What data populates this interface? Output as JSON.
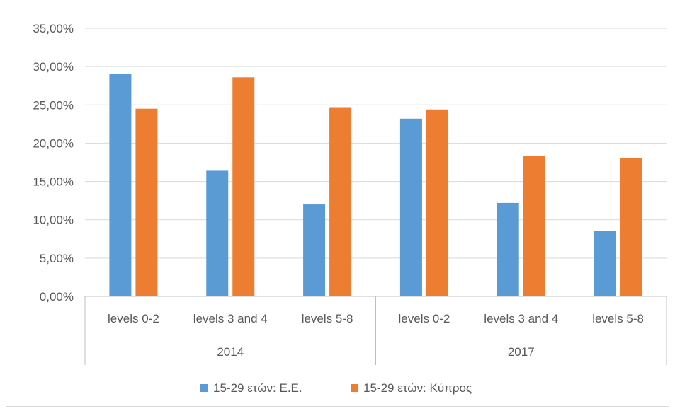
{
  "chart_data": {
    "type": "bar",
    "groups": [
      {
        "label": "2014",
        "categories": [
          "levels 0-2",
          "levels 3 and 4",
          "levels 5-8"
        ]
      },
      {
        "label": "2017",
        "categories": [
          "levels 0-2",
          "levels 3 and 4",
          "levels 5-8"
        ]
      }
    ],
    "series": [
      {
        "name": "15-29 ετών: Ε.Ε.",
        "color": "#5b9bd5",
        "values": [
          29.0,
          16.4,
          12.0,
          23.2,
          12.2,
          8.5
        ]
      },
      {
        "name": "15-29 ετών: Κύπρος",
        "color": "#ed7d31",
        "values": [
          24.5,
          28.6,
          24.7,
          24.4,
          18.3,
          18.1
        ]
      }
    ],
    "ylim": [
      0,
      35
    ],
    "yticks": [
      0,
      5,
      10,
      15,
      20,
      25,
      30,
      35
    ],
    "ytick_labels": [
      "0,00%",
      "5,00%",
      "10,00%",
      "15,00%",
      "20,00%",
      "25,00%",
      "30,00%",
      "35,00%"
    ],
    "grid": true,
    "legend": "bottom",
    "title": "",
    "xlabel": "",
    "ylabel": ""
  }
}
